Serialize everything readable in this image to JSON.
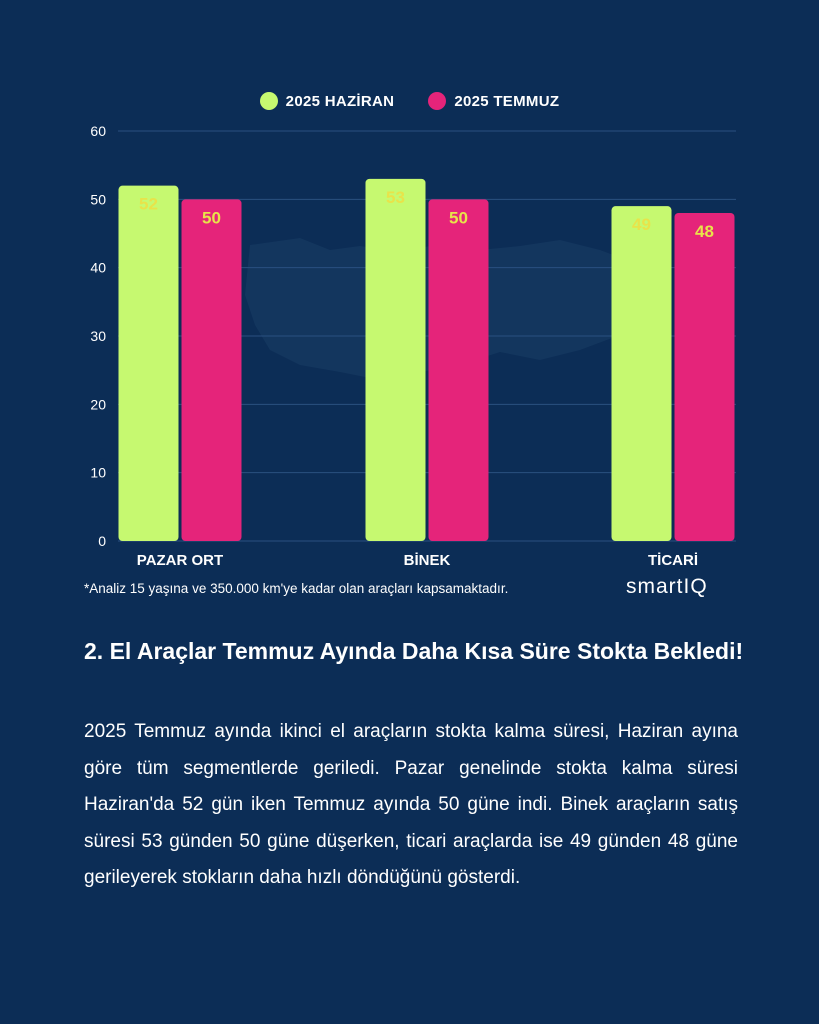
{
  "chart_data": {
    "type": "bar",
    "categories": [
      "PAZAR ORT",
      "BİNEK",
      "TİCARİ"
    ],
    "series": [
      {
        "name": "2025 HAZİRAN",
        "color": "#c6f970",
        "values": [
          52,
          53,
          49
        ]
      },
      {
        "name": "2025 TEMMUZ",
        "color": "#e5247a",
        "values": [
          50,
          50,
          48
        ]
      }
    ],
    "ylim": [
      0,
      60
    ],
    "yticks": [
      0,
      10,
      20,
      30,
      40,
      50,
      60
    ],
    "grid": true,
    "legend": "top-center",
    "label_color": "#e8e34a"
  },
  "footnote": "*Analiz 15 yaşına ve 350.000 km'ye kadar olan araçları kapsamaktadır.",
  "brand": "smartIQ",
  "heading": "2. El Araçlar Temmuz Ayında Daha Kısa Süre Stokta Bekledi!",
  "body": "2025 Temmuz ayında ikinci el araçların stokta kalma süresi, Haziran ayına göre tüm segmentlerde geriledi. Pazar genelinde stokta kalma süresi Haziran'da 52 gün iken Temmuz ayında 50 güne indi. Binek araçların satış süresi 53 günden 50 güne düşerken, ticari araçlarda ise 49 günden 48 güne gerileyerek stokların daha hızlı döndüğünü gösterdi."
}
